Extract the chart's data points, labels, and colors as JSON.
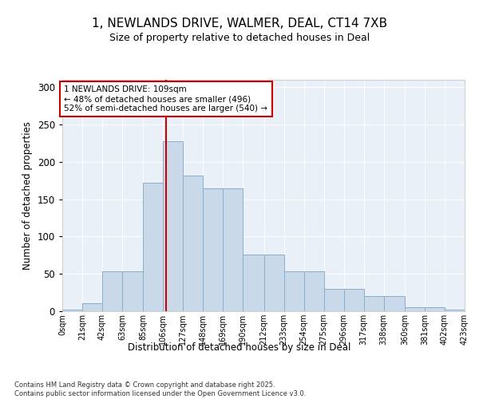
{
  "title1": "1, NEWLANDS DRIVE, WALMER, DEAL, CT14 7XB",
  "title2": "Size of property relative to detached houses in Deal",
  "xlabel": "Distribution of detached houses by size in Deal",
  "ylabel": "Number of detached properties",
  "bin_edges": [
    0,
    21,
    42,
    63,
    85,
    106,
    127,
    148,
    169,
    190,
    212,
    233,
    254,
    275,
    296,
    317,
    338,
    360,
    381,
    402,
    423
  ],
  "bar_heights": [
    2,
    11,
    53,
    53,
    172,
    228,
    182,
    165,
    165,
    76,
    76,
    53,
    53,
    30,
    30,
    20,
    20,
    5,
    5,
    2
  ],
  "tick_labels": [
    "0sqm",
    "21sqm",
    "42sqm",
    "63sqm",
    "85sqm",
    "106sqm",
    "127sqm",
    "148sqm",
    "169sqm",
    "190sqm",
    "212sqm",
    "233sqm",
    "254sqm",
    "275sqm",
    "296sqm",
    "317sqm",
    "338sqm",
    "360sqm",
    "381sqm",
    "402sqm",
    "423sqm"
  ],
  "bar_color": "#c9d9ea",
  "bar_edge_color": "#88aece",
  "vline_x": 109,
  "vline_color": "#cc0000",
  "annotation_text": "1 NEWLANDS DRIVE: 109sqm\n← 48% of detached houses are smaller (496)\n52% of semi-detached houses are larger (540) →",
  "annotation_box_color": "#ffffff",
  "annotation_box_edge": "#cc0000",
  "ylim": [
    0,
    310
  ],
  "yticks": [
    0,
    50,
    100,
    150,
    200,
    250,
    300
  ],
  "background_color": "#eaf0f8",
  "footer": "Contains HM Land Registry data © Crown copyright and database right 2025.\nContains public sector information licensed under the Open Government Licence v3.0.",
  "title_fontsize": 11,
  "subtitle_fontsize": 9,
  "footer_fontsize": 6
}
